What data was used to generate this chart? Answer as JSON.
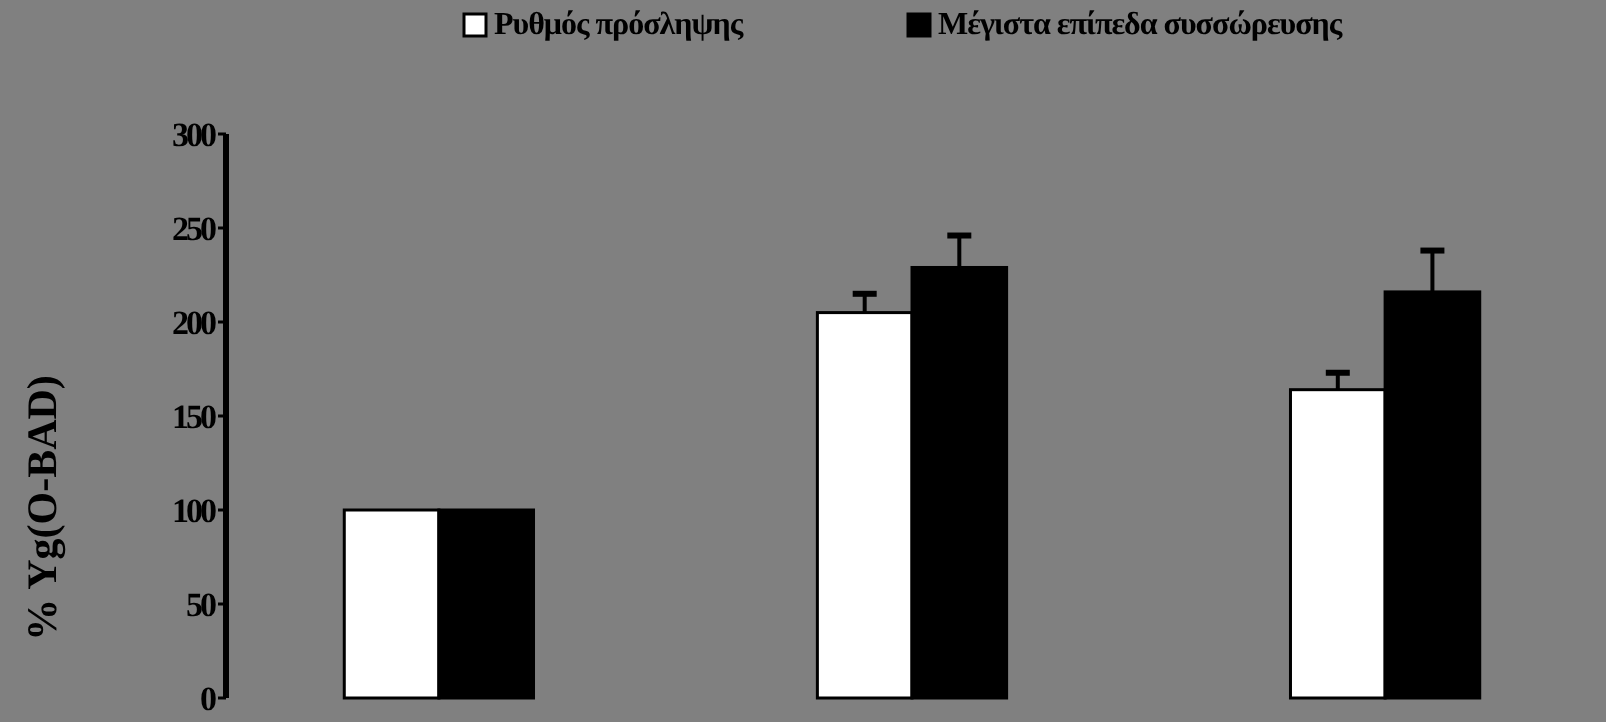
{
  "chart_data": {
    "type": "bar",
    "ylabel": "% Yg(O-BAD)",
    "categories": [
      null,
      null,
      null
    ],
    "series": [
      {
        "name": "Ρυθμός πρόσληψης",
        "color": "#ffffff",
        "values": [
          100,
          205,
          164
        ],
        "errors": [
          null,
          [
            205,
            215
          ],
          [
            164,
            173
          ]
        ]
      },
      {
        "name": "Μέγιστα επίπεδα συσσώρευσης",
        "color": "#000000",
        "values": [
          100,
          229,
          216
        ],
        "errors": [
          null,
          [
            229,
            246
          ],
          [
            216,
            238
          ]
        ]
      }
    ],
    "ylim": [
      0,
      300
    ],
    "yticks": [
      0,
      50,
      100,
      150,
      200,
      250,
      300
    ],
    "legend": "top",
    "grid": false
  }
}
